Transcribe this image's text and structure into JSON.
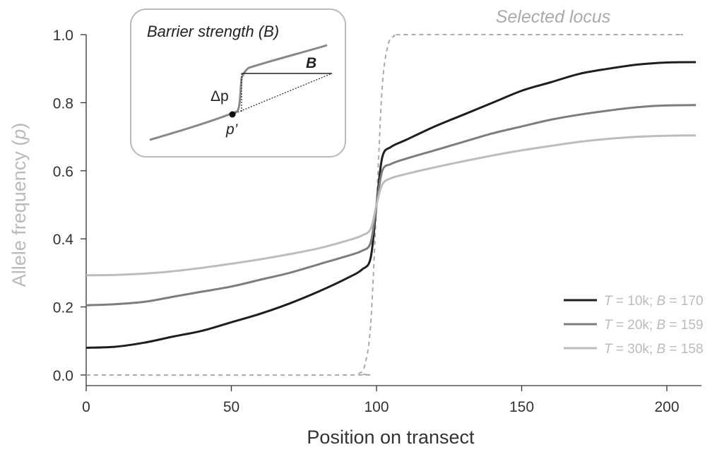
{
  "chart_data": {
    "type": "line",
    "xlabel": "Position on transect",
    "ylabel": "Allele frequency (p)",
    "ylabel_parts": [
      "Allele frequency (",
      "p",
      ")"
    ],
    "xlim": [
      0,
      210
    ],
    "ylim": [
      0,
      1
    ],
    "x_ticks": [
      0,
      50,
      100,
      150,
      200
    ],
    "y_ticks": [
      0.0,
      0.2,
      0.4,
      0.6,
      0.8,
      1.0
    ],
    "y_tick_labels": [
      "0.0",
      "0.2",
      "0.4",
      "0.6",
      "0.8",
      "1.0"
    ],
    "grid": false,
    "legend_position": "bottom-right",
    "series": [
      {
        "name": "T = 10k; B = 170",
        "name_parts": [
          "T",
          " = 10k; ",
          "B",
          " = 170"
        ],
        "color": "#1e1e1e",
        "x": [
          0,
          10,
          20,
          30,
          40,
          50,
          60,
          70,
          80,
          90,
          95,
          98,
          100,
          102,
          105,
          110,
          120,
          130,
          140,
          150,
          160,
          170,
          180,
          190,
          200,
          210
        ],
        "y": [
          0.08,
          0.083,
          0.095,
          0.113,
          0.13,
          0.155,
          0.18,
          0.21,
          0.245,
          0.285,
          0.31,
          0.345,
          0.5,
          0.64,
          0.67,
          0.69,
          0.73,
          0.765,
          0.8,
          0.835,
          0.86,
          0.885,
          0.9,
          0.912,
          0.918,
          0.919
        ]
      },
      {
        "name": "T = 20k; B = 159",
        "name_parts": [
          "T",
          " = 20k; ",
          "B",
          " = 159"
        ],
        "color": "#7d7d7d",
        "x": [
          0,
          10,
          20,
          30,
          40,
          50,
          60,
          70,
          80,
          90,
          95,
          98,
          100,
          102,
          105,
          110,
          120,
          130,
          140,
          150,
          160,
          170,
          180,
          190,
          200,
          210
        ],
        "y": [
          0.205,
          0.208,
          0.215,
          0.23,
          0.245,
          0.26,
          0.28,
          0.3,
          0.325,
          0.35,
          0.365,
          0.39,
          0.5,
          0.6,
          0.62,
          0.635,
          0.66,
          0.685,
          0.71,
          0.73,
          0.75,
          0.765,
          0.777,
          0.787,
          0.792,
          0.793
        ]
      },
      {
        "name": "T = 30k; B = 158",
        "name_parts": [
          "T",
          " = 30k; ",
          "B",
          " = 158"
        ],
        "color": "#bdbdbd",
        "x": [
          0,
          10,
          20,
          30,
          40,
          50,
          60,
          70,
          80,
          90,
          95,
          98,
          100,
          102,
          105,
          110,
          120,
          130,
          140,
          150,
          160,
          170,
          180,
          190,
          200,
          210
        ],
        "y": [
          0.293,
          0.294,
          0.298,
          0.305,
          0.315,
          0.327,
          0.34,
          0.355,
          0.372,
          0.395,
          0.41,
          0.43,
          0.5,
          0.56,
          0.578,
          0.59,
          0.61,
          0.628,
          0.645,
          0.66,
          0.673,
          0.685,
          0.694,
          0.7,
          0.703,
          0.704
        ]
      }
    ],
    "selected_locus": {
      "label": "Selected locus",
      "color": "#aaaaaa",
      "dashed": true,
      "x": [
        0,
        90,
        94,
        96,
        98,
        100,
        102,
        104,
        106,
        110,
        150,
        200,
        205
      ],
      "y": [
        0.0,
        0.0,
        0.005,
        0.03,
        0.15,
        0.5,
        0.85,
        0.97,
        0.995,
        1.0,
        1.0,
        1.0,
        1.0
      ]
    },
    "inset": {
      "title_parts": [
        "Barrier strength (",
        "B",
        ")"
      ],
      "label_delta_p": "Δp",
      "label_p_prime": "p’",
      "label_B": "B"
    }
  },
  "colors": {
    "axis": "#333333",
    "axis_label": "#bbbbbb",
    "legend_text": "#bbbbbb",
    "inset_border": "#bbbbbb"
  }
}
